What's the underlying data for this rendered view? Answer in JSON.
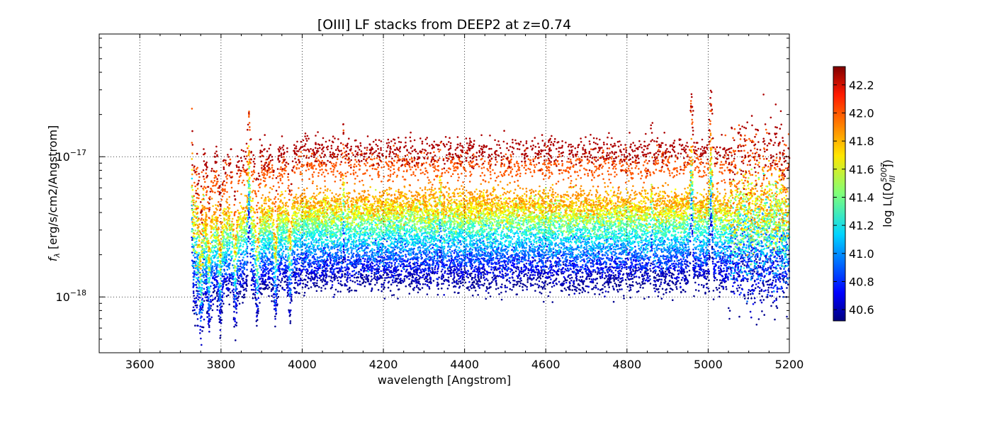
{
  "chart_data": {
    "type": "scatter",
    "title": "[OIII] LF stacks from DEEP2 at z=0.74",
    "xlabel": "wavelength [Angstrom]",
    "ylabel": "f_λ [erg/s/cm2/Angstrom]",
    "ylabel_symbol": "f",
    "ylabel_subscript": "λ",
    "ylabel_rest": " [erg/s/cm2/Angstrom]",
    "xlim": [
      3500,
      5200
    ],
    "ylim": [
      4e-19,
      7.5e-17
    ],
    "yscale": "log",
    "grid": true,
    "xticks": [
      3600,
      3800,
      4000,
      4200,
      4400,
      4600,
      4800,
      5000,
      5200
    ],
    "xtick_labels": [
      "3600",
      "3800",
      "4000",
      "4200",
      "4400",
      "4600",
      "4800",
      "5000",
      "5200"
    ],
    "yticks": [
      1e-18,
      1e-17
    ],
    "ytick_labels": [
      {
        "base": "10",
        "exp": "−18"
      },
      {
        "base": "10",
        "exp": "−17"
      }
    ],
    "colorbar": {
      "label": "log L([O",
      "label_sup": "5007",
      "label_sub": "III",
      "label_end": "])",
      "range": [
        40.52,
        42.33
      ],
      "ticks": [
        40.6,
        40.8,
        41.0,
        41.2,
        41.4,
        41.6,
        41.8,
        42.0,
        42.2
      ],
      "tick_labels": [
        "40.6",
        "40.8",
        "41.0",
        "41.2",
        "41.4",
        "41.6",
        "41.8",
        "42.0",
        "42.2"
      ]
    },
    "wavelength_range": [
      3728,
      5200
    ],
    "series": [
      {
        "logL": 40.55,
        "continuum_flux": 1.3e-18
      },
      {
        "logL": 40.65,
        "continuum_flux": 1.5e-18
      },
      {
        "logL": 40.75,
        "continuum_flux": 1.7e-18
      },
      {
        "logL": 40.85,
        "continuum_flux": 1.9e-18
      },
      {
        "logL": 40.95,
        "continuum_flux": 2.1e-18
      },
      {
        "logL": 41.05,
        "continuum_flux": 2.4e-18
      },
      {
        "logL": 41.15,
        "continuum_flux": 2.7e-18
      },
      {
        "logL": 41.25,
        "continuum_flux": 3e-18
      },
      {
        "logL": 41.35,
        "continuum_flux": 3.3e-18
      },
      {
        "logL": 41.45,
        "continuum_flux": 3.6e-18
      },
      {
        "logL": 41.55,
        "continuum_flux": 3.9e-18
      },
      {
        "logL": 41.65,
        "continuum_flux": 4.2e-18
      },
      {
        "logL": 41.75,
        "continuum_flux": 4.5e-18
      },
      {
        "logL": 41.85,
        "continuum_flux": 4.9e-18
      },
      {
        "logL": 41.95,
        "continuum_flux": 8.5e-18
      },
      {
        "logL": 42.25,
        "continuum_flux": 1.1e-17
      }
    ],
    "absorption_lines": [
      3750,
      3771,
      3798,
      3835,
      3889,
      3934,
      3970,
      4102,
      4340,
      4861
    ],
    "emission_lines": [
      3727,
      3869,
      4102,
      4340,
      4861,
      4959,
      5007
    ]
  }
}
